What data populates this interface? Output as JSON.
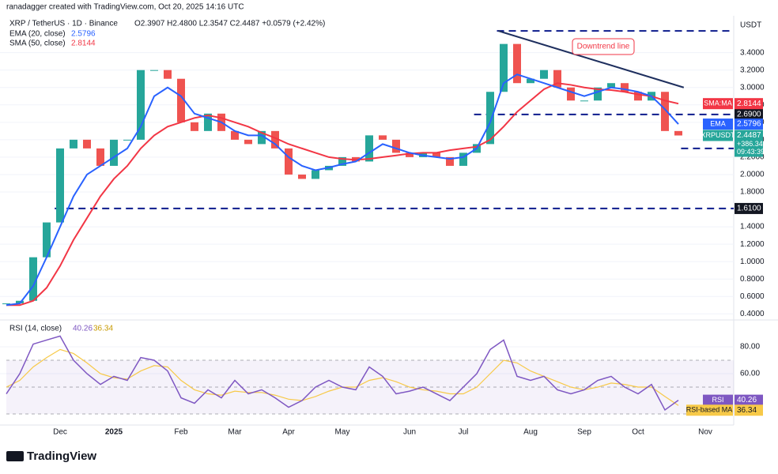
{
  "header": "ranadagger created with TradingView.com, Oct 20, 2025 14:16 UTC",
  "footer": "TradingView",
  "chart_data": [
    {
      "type": "candlestick",
      "title": "XRP / TetherUS · 1D · Binance",
      "ohlc_text": "O2.3907 H2.4800 L2.3547 C2.4487 +0.0579 (+2.42%)",
      "currency": "USDT",
      "categories": [
        null,
        null,
        null,
        null,
        "Dec",
        null,
        null,
        null,
        "2025",
        null,
        null,
        null,
        null,
        "Feb",
        null,
        null,
        null,
        "Mar",
        null,
        null,
        null,
        "Apr",
        null,
        null,
        null,
        "May",
        null,
        null,
        null,
        null,
        "Jun",
        null,
        null,
        null,
        "Jul",
        null,
        null,
        null,
        null,
        "Aug",
        null,
        null,
        null,
        "Sep",
        null,
        null,
        null,
        "Oct",
        null,
        null,
        null,
        null,
        "Nov",
        null,
        null
      ],
      "series": [
        {
          "name": "XRPUSDT",
          "tag": "XRPUSDT",
          "color": "#26a69a",
          "color_down": "#ef5350",
          "change": "+386.34%",
          "countdown": "09:43:39",
          "values": [
            0.52,
            0.55,
            1.05,
            1.45,
            2.3,
            2.4,
            2.3,
            2.1,
            2.4,
            2.4,
            3.2,
            3.2,
            3.1,
            2.6,
            2.5,
            2.7,
            2.5,
            2.4,
            2.35,
            2.5,
            2.3,
            2.0,
            1.95,
            2.05,
            2.1,
            2.2,
            2.15,
            2.45,
            2.4,
            2.25,
            2.2,
            2.25,
            2.2,
            2.1,
            2.25,
            2.35,
            2.95,
            3.5,
            3.05,
            3.1,
            3.2,
            3.0,
            2.85,
            2.85,
            3.0,
            3.05,
            2.95,
            2.85,
            2.95,
            2.5,
            2.4487,
            null,
            null,
            null,
            null
          ]
        },
        {
          "name": "EMA (20, close)",
          "tag": "EMA",
          "color": "#2962ff",
          "values": [
            0.5,
            0.52,
            0.72,
            1.05,
            1.4,
            1.75,
            2.0,
            2.1,
            2.2,
            2.3,
            2.55,
            2.9,
            3.0,
            2.9,
            2.7,
            2.65,
            2.6,
            2.5,
            2.45,
            2.45,
            2.35,
            2.2,
            2.1,
            2.05,
            2.08,
            2.12,
            2.15,
            2.25,
            2.35,
            2.3,
            2.25,
            2.22,
            2.2,
            2.18,
            2.2,
            2.3,
            2.6,
            3.05,
            3.15,
            3.1,
            3.05,
            3.0,
            2.95,
            2.9,
            2.95,
            3.0,
            2.98,
            2.95,
            2.9,
            2.75,
            2.5796,
            null,
            null,
            null,
            null
          ]
        },
        {
          "name": "SMA (50, close)",
          "tag": "SMA:MA",
          "color": "#f23645",
          "values": [
            0.5,
            0.5,
            0.55,
            0.7,
            0.95,
            1.25,
            1.5,
            1.75,
            1.95,
            2.1,
            2.3,
            2.45,
            2.55,
            2.6,
            2.65,
            2.68,
            2.65,
            2.6,
            2.55,
            2.48,
            2.42,
            2.35,
            2.3,
            2.25,
            2.2,
            2.18,
            2.17,
            2.18,
            2.2,
            2.22,
            2.24,
            2.25,
            2.25,
            2.28,
            2.3,
            2.32,
            2.4,
            2.55,
            2.72,
            2.85,
            2.98,
            3.05,
            3.03,
            3.0,
            2.98,
            2.97,
            2.95,
            2.92,
            2.9,
            2.85,
            2.8144,
            null,
            null,
            null,
            null
          ]
        }
      ],
      "ylim": [
        0.33,
        3.66
      ],
      "yticks": [
        {
          "value": 0.4,
          "label": "0.4000"
        },
        {
          "value": 0.6,
          "label": "0.6000"
        },
        {
          "value": 0.8,
          "label": "0.8000"
        },
        {
          "value": 1.0,
          "label": "1.0000"
        },
        {
          "value": 1.2,
          "label": "1.2000"
        },
        {
          "value": 1.4,
          "label": "1.4000"
        },
        {
          "value": 1.8,
          "label": "1.8000"
        },
        {
          "value": 2.0,
          "label": "2.0000"
        },
        {
          "value": 2.2,
          "label": "2.2000"
        },
        {
          "value": 2.4,
          "label": "2.4000"
        },
        {
          "value": 2.6,
          "label": "2.6000"
        },
        {
          "value": 2.8,
          "label": "2.8000"
        },
        {
          "value": 3.0,
          "label": "3.0000"
        },
        {
          "value": 3.2,
          "label": "3.2000"
        },
        {
          "value": 3.4,
          "label": "3.4000"
        }
      ],
      "grid": true,
      "levels": [
        {
          "value": 3.65
        },
        {
          "value": 2.69,
          "label": "2.6900"
        },
        {
          "value": 2.3,
          "label": "2.3000"
        },
        {
          "value": 1.61,
          "label": "1.6100"
        }
      ],
      "trendline": {
        "label": "Downtrend line",
        "color": "#1e2f5e",
        "values": [
          3.65,
          3.0
        ]
      }
    },
    {
      "type": "line",
      "title": "RSI (14, close)",
      "series": [
        {
          "name": "RSI",
          "color": "#7e57c2",
          "values": [
            45,
            60,
            82,
            85,
            88,
            70,
            60,
            52,
            58,
            55,
            72,
            70,
            62,
            42,
            38,
            48,
            42,
            55,
            45,
            48,
            42,
            35,
            40,
            50,
            55,
            50,
            48,
            65,
            58,
            45,
            47,
            50,
            45,
            40,
            50,
            60,
            78,
            85,
            58,
            55,
            58,
            48,
            45,
            48,
            55,
            58,
            50,
            45,
            52,
            33,
            40.26,
            null,
            null,
            null,
            null
          ]
        },
        {
          "name": "RSI-based MA",
          "color": "#f7c948",
          "values": [
            50,
            55,
            65,
            72,
            78,
            75,
            68,
            60,
            57,
            56,
            62,
            66,
            65,
            55,
            48,
            45,
            44,
            47,
            46,
            46,
            44,
            41,
            40,
            43,
            47,
            50,
            50,
            55,
            57,
            54,
            50,
            48,
            47,
            45,
            45,
            50,
            60,
            70,
            68,
            62,
            58,
            54,
            50,
            48,
            50,
            53,
            52,
            50,
            50,
            43,
            36.34,
            null,
            null,
            null,
            null
          ]
        }
      ],
      "ylim": [
        21.8,
        98.2
      ],
      "yticks": [
        {
          "value": 60,
          "label": "60.00"
        },
        {
          "value": 80,
          "label": "80.00"
        }
      ],
      "bands": [
        30,
        50,
        70
      ]
    }
  ]
}
